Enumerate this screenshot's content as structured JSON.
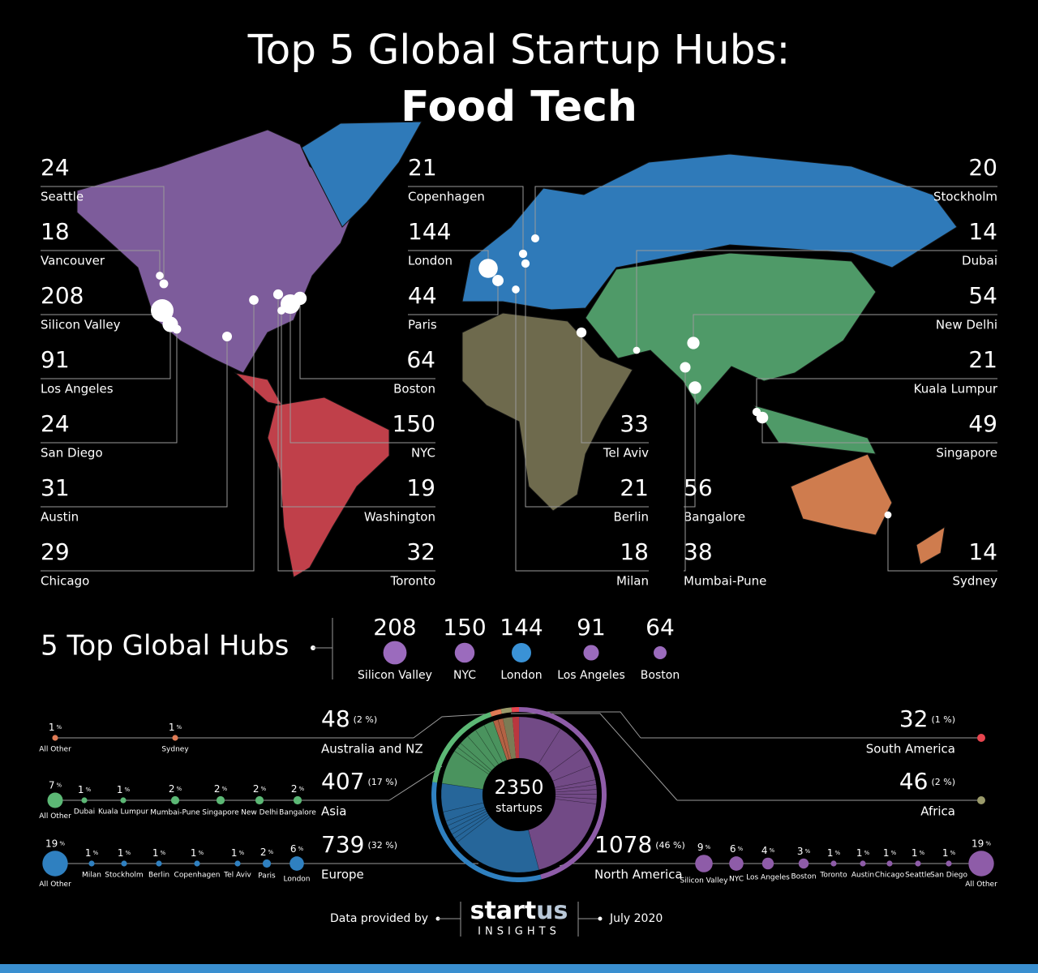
{
  "title": {
    "line1": "Top 5 Global Startup Hubs:",
    "line2": "Food Tech"
  },
  "percent_sign": "%",
  "cities": [
    {
      "name": "Seattle",
      "value": 24
    },
    {
      "name": "Vancouver",
      "value": 18
    },
    {
      "name": "Silicon Valley",
      "value": 208
    },
    {
      "name": "Los Angeles",
      "value": 91
    },
    {
      "name": "San Diego",
      "value": 24
    },
    {
      "name": "Austin",
      "value": 31
    },
    {
      "name": "Chicago",
      "value": 29
    },
    {
      "name": "Copenhagen",
      "value": 21
    },
    {
      "name": "London",
      "value": 144
    },
    {
      "name": "Paris",
      "value": 44
    },
    {
      "name": "Boston",
      "value": 64
    },
    {
      "name": "NYC",
      "value": 150
    },
    {
      "name": "Washington",
      "value": 19
    },
    {
      "name": "Toronto",
      "value": 32
    },
    {
      "name": "Tel Aviv",
      "value": 33
    },
    {
      "name": "Berlin",
      "value": 21
    },
    {
      "name": "Milan",
      "value": 18
    },
    {
      "name": "Bangalore",
      "value": 56
    },
    {
      "name": "Mumbai-Pune",
      "value": 38
    },
    {
      "name": "Stockholm",
      "value": 20
    },
    {
      "name": "Dubai",
      "value": 14
    },
    {
      "name": "New Delhi",
      "value": 54
    },
    {
      "name": "Kuala Lumpur",
      "value": 21
    },
    {
      "name": "Singapore",
      "value": 49
    },
    {
      "name": "Sydney",
      "value": 14
    }
  ],
  "top_hubs": {
    "title": "5 Top Global Hubs",
    "items": [
      {
        "name": "Silicon Valley",
        "value": 208,
        "color": "#9b6bbd"
      },
      {
        "name": "NYC",
        "value": 150,
        "color": "#9b6bbd"
      },
      {
        "name": "London",
        "value": 144,
        "color": "#3a92d6"
      },
      {
        "name": "Los Angeles",
        "value": 91,
        "color": "#9b6bbd"
      },
      {
        "name": "Boston",
        "value": 64,
        "color": "#9b6bbd"
      }
    ]
  },
  "regions": {
    "total": 2350,
    "total_label": "startups",
    "items": [
      {
        "name": "North America",
        "value": 1078,
        "share": "(46 %)",
        "color": "#8e5ca8",
        "items": [
          {
            "name": "Silicon Valley",
            "pct": 9
          },
          {
            "name": "NYC",
            "pct": 6
          },
          {
            "name": "Los Angeles",
            "pct": 4
          },
          {
            "name": "Boston",
            "pct": 3
          },
          {
            "name": "Toronto",
            "pct": 1
          },
          {
            "name": "Austin",
            "pct": 1
          },
          {
            "name": "Chicago",
            "pct": 1
          },
          {
            "name": "Seattle",
            "pct": 1
          },
          {
            "name": "San Diego",
            "pct": 1
          },
          {
            "name": "All Other",
            "pct": 19
          }
        ]
      },
      {
        "name": "Europe",
        "value": 739,
        "share": "(32 %)",
        "color": "#2f80c0",
        "items": [
          {
            "name": "All Other",
            "pct": 19
          },
          {
            "name": "Milan",
            "pct": 1
          },
          {
            "name": "Stockholm",
            "pct": 1
          },
          {
            "name": "Berlin",
            "pct": 1
          },
          {
            "name": "Copenhagen",
            "pct": 1
          },
          {
            "name": "Tel Aviv",
            "pct": 1
          },
          {
            "name": "Paris",
            "pct": 2
          },
          {
            "name": "London",
            "pct": 6
          }
        ]
      },
      {
        "name": "Asia",
        "value": 407,
        "share": "(17 %)",
        "color": "#5cb875",
        "items": [
          {
            "name": "All Other",
            "pct": 7
          },
          {
            "name": "Dubai",
            "pct": 1
          },
          {
            "name": "Kuala Lumpur",
            "pct": 1
          },
          {
            "name": "Mumbai-Pune",
            "pct": 2
          },
          {
            "name": "Singapore",
            "pct": 2
          },
          {
            "name": "New Delhi",
            "pct": 2
          },
          {
            "name": "Bangalore",
            "pct": 2
          }
        ]
      },
      {
        "name": "Australia and NZ",
        "value": 48,
        "share": "(2 %)",
        "color": "#e07b55",
        "items": [
          {
            "name": "All Other",
            "pct": 1
          },
          {
            "name": "Sydney",
            "pct": 1
          }
        ]
      },
      {
        "name": "Africa",
        "value": 46,
        "share": "(2 %)",
        "color": "#9a9a6a",
        "items": []
      },
      {
        "name": "South America",
        "value": 32,
        "share": "(1 %)",
        "color": "#e8454f",
        "items": []
      }
    ]
  },
  "footer": {
    "credit": "Data provided by",
    "logo": {
      "start": "start",
      "us": "us",
      "tagline": "INSIGHTS"
    },
    "date": "July 2020"
  }
}
